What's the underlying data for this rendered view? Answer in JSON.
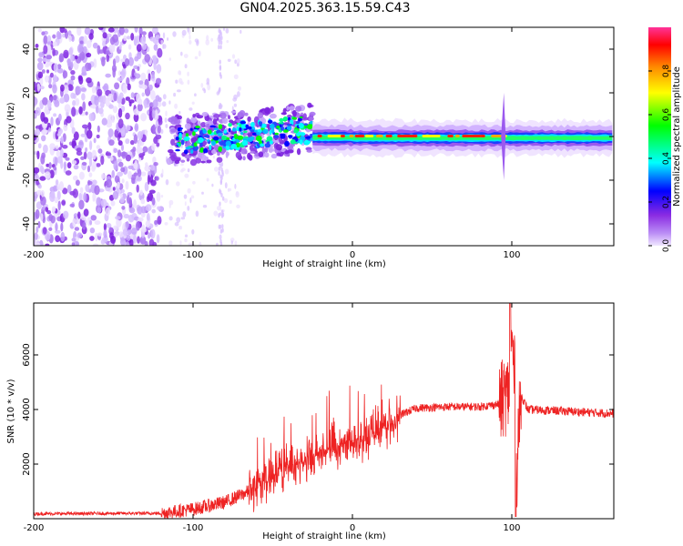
{
  "title": "GN04.2025.363.15.59.C43",
  "chart_data": [
    {
      "type": "heatmap",
      "name": "spectrogram",
      "xlabel": "Height of straight line (km)",
      "ylabel": "Frequency (Hz)",
      "xlim": [
        -200,
        164
      ],
      "ylim": [
        -50,
        50
      ],
      "xticks": [
        -200,
        -100,
        0,
        100
      ],
      "xtick_labels": [
        "-200",
        "-100",
        "0",
        "100"
      ],
      "yticks": [
        -40,
        -20,
        0,
        20,
        40
      ],
      "ytick_labels": [
        "-40",
        "-20",
        "0",
        "20",
        "40"
      ],
      "colorbar": {
        "label": "Normalized spectral amplitude",
        "range": [
          0,
          1
        ],
        "ticks": [
          0.0,
          0.2,
          0.4,
          0.6,
          0.8
        ],
        "tick_labels": [
          "0.0",
          "0.2",
          "0.4",
          "0.6",
          "0.8"
        ],
        "colormap": [
          "#e6dcff",
          "#8a2be2",
          "#0000ff",
          "#00ffff",
          "#00ff00",
          "#ffff00",
          "#ff8800",
          "#ff0000",
          "#ff3399"
        ]
      },
      "features": {
        "noise_region_x": [
          -200,
          -120
        ],
        "weak_noise_x": [
          -120,
          -70
        ],
        "scattered_band_x": [
          -115,
          -25
        ],
        "narrow_band_x": [
          -25,
          164
        ],
        "spike_x": 95
      }
    },
    {
      "type": "line",
      "name": "snr",
      "xlabel": "Height of straight line (km)",
      "ylabel": "SNR (10 * v/v)",
      "xlim": [
        -200,
        164
      ],
      "ylim": [
        0,
        7900
      ],
      "xticks": [
        -200,
        -100,
        0,
        100
      ],
      "xtick_labels": [
        "-200",
        "-100",
        "0",
        "100"
      ],
      "yticks": [
        2000,
        4000,
        6000
      ],
      "ytick_labels": [
        "2000",
        "4000",
        "6000"
      ],
      "color": "#ee2222",
      "envelope": {
        "x": [
          -200,
          -120,
          -100,
          -80,
          -65,
          -55,
          -40,
          -30,
          -20,
          -10,
          0,
          10,
          20,
          30,
          40,
          60,
          80,
          92,
          96,
          98,
          100,
          102,
          103,
          104,
          106,
          110,
          130,
          164
        ],
        "y": [
          180,
          200,
          350,
          600,
          1000,
          1400,
          1900,
          2100,
          2400,
          2650,
          2800,
          2950,
          3300,
          3800,
          4050,
          4100,
          4100,
          4200,
          4500,
          4600,
          6500,
          5000,
          1500,
          3000,
          4500,
          4000,
          3950,
          3850
        ]
      },
      "peak": {
        "x": 99,
        "y": 7900
      },
      "dip": {
        "x": 102.5,
        "y": 80
      }
    }
  ]
}
